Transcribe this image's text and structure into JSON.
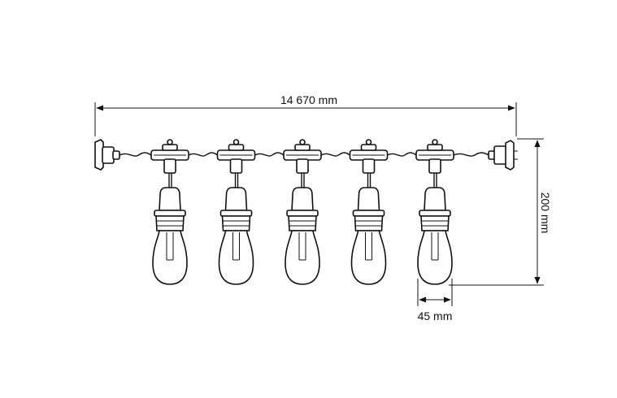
{
  "dimensions": {
    "length": "14 670 mm",
    "height": "200 mm",
    "bulb_width": "45 mm"
  },
  "bulb_count": 5,
  "colors": {
    "line": "#111111",
    "background": "#ffffff"
  }
}
